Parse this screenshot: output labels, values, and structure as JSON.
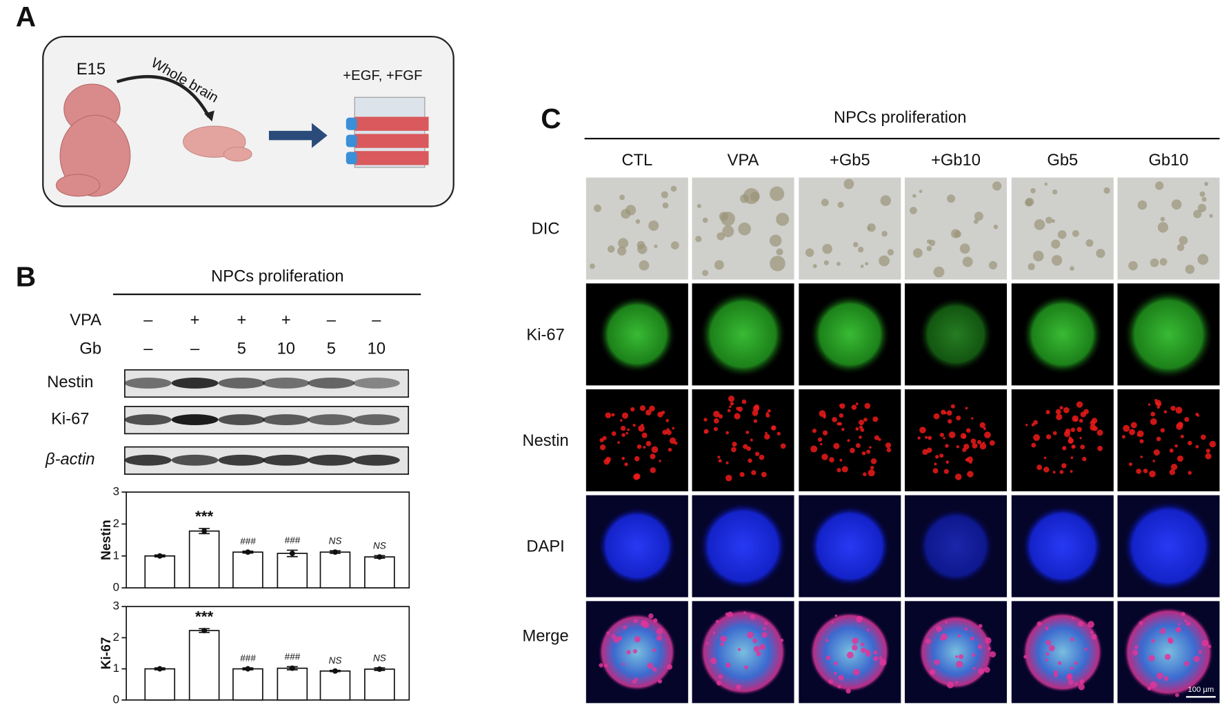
{
  "panels": {
    "a": {
      "label": "A",
      "stage": "E15",
      "arrow_label": "Whole brain",
      "medium": "+EGF, +FGF"
    },
    "b": {
      "label": "B",
      "title": "NPCs proliferation",
      "rows": [
        {
          "name": "VPA",
          "cells": [
            "–",
            "+",
            "+",
            "+",
            "–",
            "–"
          ]
        },
        {
          "name": "Gb",
          "cells": [
            "–",
            "–",
            "5",
            "10",
            "5",
            "10"
          ]
        }
      ],
      "blots": [
        "Nestin",
        "Ki-67",
        "β-actin"
      ]
    },
    "c": {
      "label": "C",
      "title": "NPCs proliferation",
      "columns": [
        "CTL",
        "VPA",
        "+Gb5",
        "+Gb10",
        "Gb5",
        "Gb10"
      ],
      "rows": [
        "DIC",
        "Ki-67",
        "Nestin",
        "DAPI",
        "Merge"
      ],
      "scale_bar": "100 µm"
    }
  },
  "chart_data": [
    {
      "type": "bar",
      "ylabel": "Nestin",
      "color": "#ffffff",
      "values": [
        1.0,
        1.78,
        1.12,
        1.08,
        1.12,
        0.97
      ],
      "errors": [
        0.03,
        0.08,
        0.03,
        0.1,
        0.04,
        0.04
      ],
      "annotations": [
        null,
        "***",
        "###",
        "###",
        "NS",
        "NS"
      ],
      "ylim": [
        0,
        3
      ],
      "yticks": [
        0,
        1,
        2,
        3
      ]
    },
    {
      "type": "bar",
      "ylabel": "Ki-67",
      "color": "#ffffff",
      "values": [
        1.0,
        2.23,
        1.0,
        1.02,
        0.93,
        0.99
      ],
      "errors": [
        0.03,
        0.06,
        0.03,
        0.05,
        0.02,
        0.04
      ],
      "annotations": [
        null,
        "***",
        "###",
        "###",
        "NS",
        "NS"
      ],
      "ylim": [
        0,
        3
      ],
      "yticks": [
        0,
        1,
        2,
        3
      ]
    }
  ]
}
